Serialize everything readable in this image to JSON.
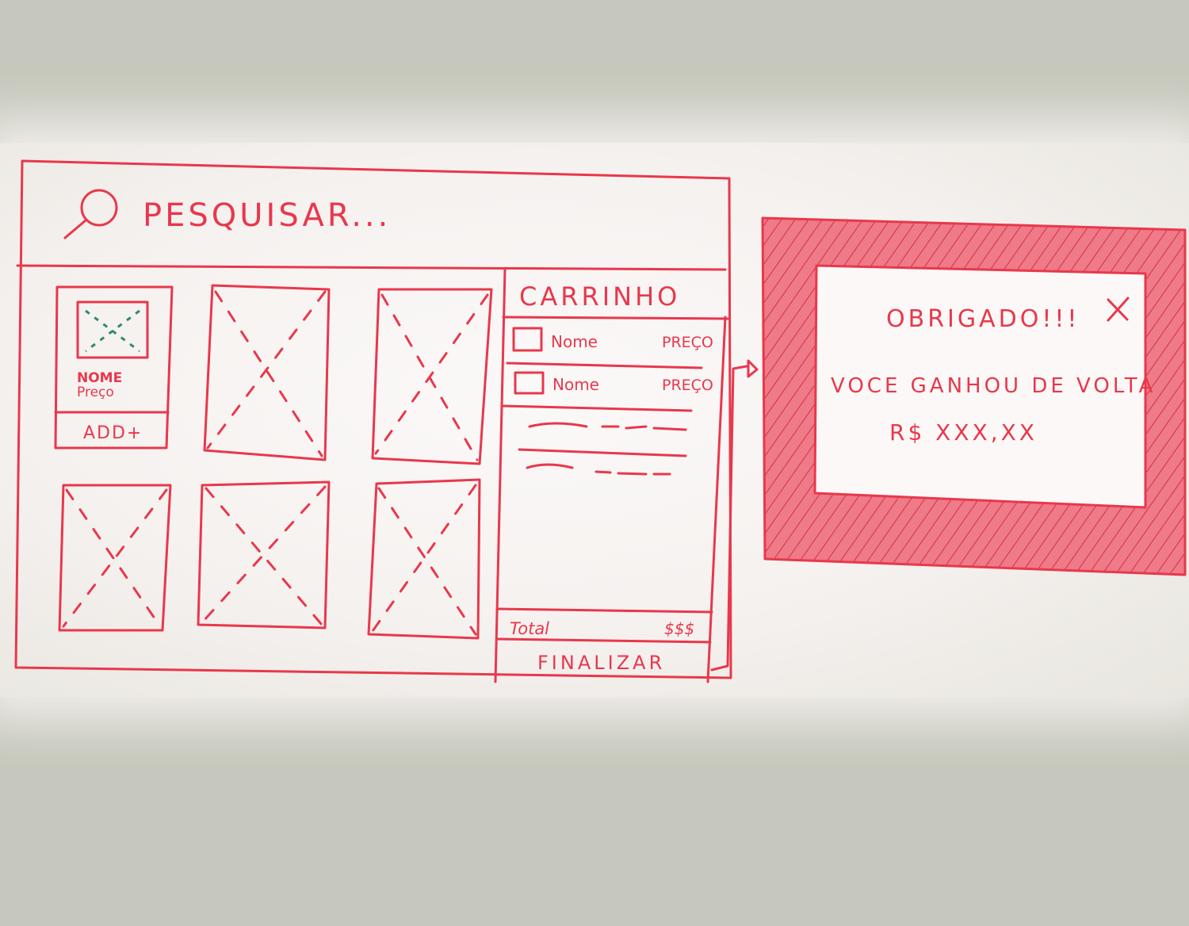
{
  "search": {
    "placeholder": "PESQUISAR...",
    "icon": "search-icon"
  },
  "product_card": {
    "name": "NOME",
    "price": "Preço",
    "add_label": "ADD+"
  },
  "cart": {
    "title": "CARRINHO",
    "items": [
      {
        "name": "Nome",
        "price": "PREÇO"
      },
      {
        "name": "Nome",
        "price": "PREÇO"
      }
    ],
    "total_label": "Total",
    "total_value": "$$$",
    "finalize_label": "FINALIZAR"
  },
  "modal": {
    "title": "OBRIGADO!!!",
    "close_icon": "close-icon",
    "message": "VOCE GANHOU DE VOLTA",
    "amount": "R$ XXX,XX"
  },
  "colors": {
    "marker": "#e8384c",
    "placeholder_marker": "#2e8a6e",
    "modal_frame": "#ee6c7c"
  }
}
